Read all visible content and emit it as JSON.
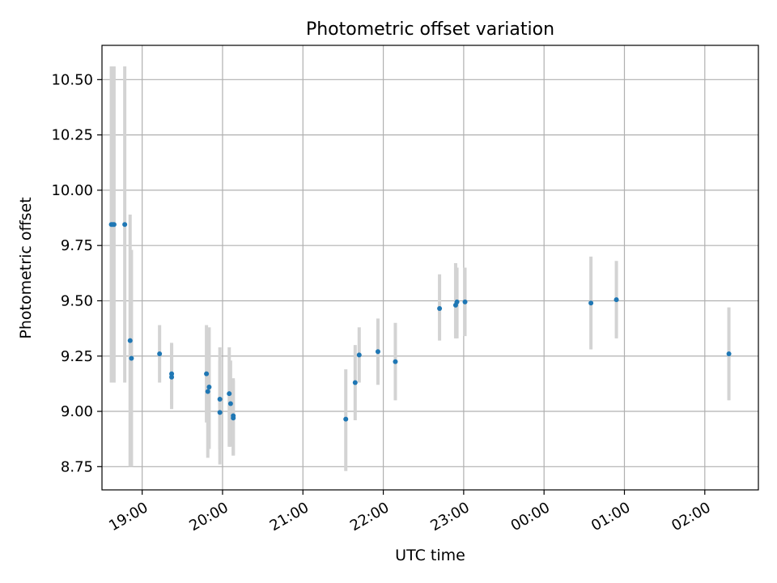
{
  "chart_data": {
    "type": "scatter",
    "title": "Photometric offset variation",
    "xlabel": "UTC time",
    "ylabel": "Photometric offset",
    "x_axis_type": "time",
    "x_tick_labels": [
      "19:00",
      "20:00",
      "21:00",
      "22:00",
      "23:00",
      "00:00",
      "01:00",
      "02:00"
    ],
    "y_ticks": [
      8.75,
      9.0,
      9.25,
      9.5,
      9.75,
      10.0,
      10.25,
      10.5
    ],
    "y_tick_labels": [
      "8.75",
      "9.00",
      "9.25",
      "9.50",
      "9.75",
      "10.00",
      "10.25",
      "10.50"
    ],
    "xlim": [
      "18:30",
      "02:40"
    ],
    "ylim": [
      8.645,
      10.655
    ],
    "grid": true,
    "series": [
      {
        "marker_color": "#1f77b4",
        "errorbar_color": "#d3d3d3",
        "points": [
          {
            "t": "18:37",
            "y": 9.845,
            "ylo": 9.13,
            "yhi": 10.56
          },
          {
            "t": "18:38",
            "y": 9.845,
            "ylo": 9.13,
            "yhi": 10.56
          },
          {
            "t": "18:39",
            "y": 9.845,
            "ylo": 9.13,
            "yhi": 10.56
          },
          {
            "t": "18:47",
            "y": 9.845,
            "ylo": 9.13,
            "yhi": 10.56
          },
          {
            "t": "18:51",
            "y": 9.32,
            "ylo": 8.75,
            "yhi": 9.89
          },
          {
            "t": "18:52",
            "y": 9.24,
            "ylo": 8.75,
            "yhi": 9.73
          },
          {
            "t": "19:13",
            "y": 9.26,
            "ylo": 9.13,
            "yhi": 9.39
          },
          {
            "t": "19:22",
            "y": 9.17,
            "ylo": 9.03,
            "yhi": 9.31
          },
          {
            "t": "19:22",
            "y": 9.155,
            "ylo": 9.01,
            "yhi": 9.3
          },
          {
            "t": "19:48",
            "y": 9.17,
            "ylo": 8.95,
            "yhi": 9.39
          },
          {
            "t": "19:49",
            "y": 9.09,
            "ylo": 8.79,
            "yhi": 9.33
          },
          {
            "t": "19:50",
            "y": 9.11,
            "ylo": 8.83,
            "yhi": 9.38
          },
          {
            "t": "19:58",
            "y": 9.055,
            "ylo": 8.83,
            "yhi": 9.29
          },
          {
            "t": "19:58",
            "y": 8.995,
            "ylo": 8.76,
            "yhi": 9.23
          },
          {
            "t": "20:05",
            "y": 9.08,
            "ylo": 8.84,
            "yhi": 9.29
          },
          {
            "t": "20:06",
            "y": 9.035,
            "ylo": 8.84,
            "yhi": 9.23
          },
          {
            "t": "20:08",
            "y": 8.98,
            "ylo": 8.8,
            "yhi": 9.14
          },
          {
            "t": "20:08",
            "y": 8.97,
            "ylo": 8.8,
            "yhi": 9.15
          },
          {
            "t": "21:32",
            "y": 8.965,
            "ylo": 8.73,
            "yhi": 9.19
          },
          {
            "t": "21:39",
            "y": 9.13,
            "ylo": 8.96,
            "yhi": 9.3
          },
          {
            "t": "21:42",
            "y": 9.255,
            "ylo": 9.13,
            "yhi": 9.38
          },
          {
            "t": "21:56",
            "y": 9.27,
            "ylo": 9.12,
            "yhi": 9.42
          },
          {
            "t": "22:09",
            "y": 9.225,
            "ylo": 9.05,
            "yhi": 9.4
          },
          {
            "t": "22:42",
            "y": 9.465,
            "ylo": 9.32,
            "yhi": 9.62
          },
          {
            "t": "22:54",
            "y": 9.48,
            "ylo": 9.33,
            "yhi": 9.67
          },
          {
            "t": "22:55",
            "y": 9.495,
            "ylo": 9.33,
            "yhi": 9.65
          },
          {
            "t": "23:01",
            "y": 9.495,
            "ylo": 9.34,
            "yhi": 9.65
          },
          {
            "t": "00:35",
            "y": 9.49,
            "ylo": 9.28,
            "yhi": 9.7
          },
          {
            "t": "00:54",
            "y": 9.505,
            "ylo": 9.33,
            "yhi": 9.68
          },
          {
            "t": "02:18",
            "y": 9.26,
            "ylo": 9.05,
            "yhi": 9.47
          }
        ]
      }
    ]
  }
}
